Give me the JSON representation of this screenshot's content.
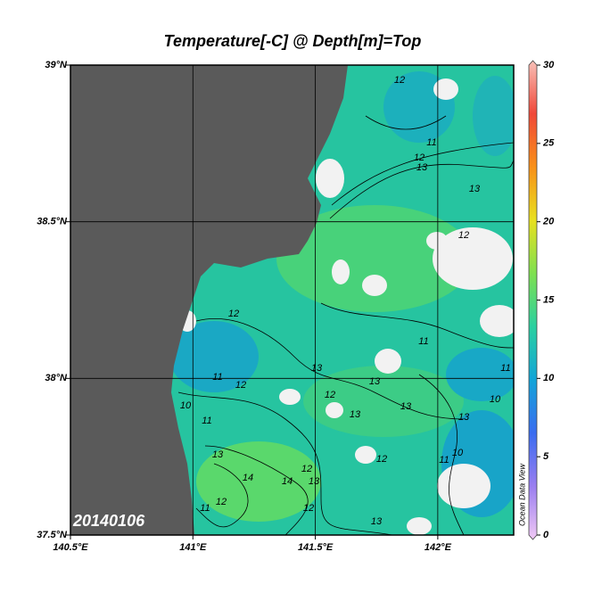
{
  "chart_data": {
    "type": "map",
    "title": "Temperature[-C] @ Depth[m]=Top",
    "date_label": "20140106",
    "watermark": "Ocean Data View",
    "xlim": [
      140.5,
      142.31
    ],
    "xticks": [
      {
        "value": 140.5,
        "label": "140.5°E"
      },
      {
        "value": 141,
        "label": "141°E"
      },
      {
        "value": 141.5,
        "label": "141.5°E"
      },
      {
        "value": 142,
        "label": "142°E"
      }
    ],
    "ylim": [
      37.5,
      39
    ],
    "yticks": [
      {
        "value": 37.5,
        "label": "37.5°N"
      },
      {
        "value": 38,
        "label": "38°N"
      },
      {
        "value": 38.5,
        "label": "38.5°N"
      },
      {
        "value": 39,
        "label": "39°N"
      }
    ],
    "grid": true,
    "colorbar": {
      "lim": [
        0,
        30
      ],
      "ticks": [
        0,
        5,
        10,
        15,
        20,
        25,
        30
      ],
      "colors": [
        "#f0c8f4",
        "#9a7ef0",
        "#3a6cf0",
        "#12a4d8",
        "#2ad0a0",
        "#7ee050",
        "#e8e020",
        "#f89018",
        "#f04838",
        "#f8c0b8"
      ]
    },
    "contour_labels": [
      12,
      11,
      12,
      13,
      13,
      12,
      11,
      12,
      10,
      11,
      13,
      12,
      13,
      13,
      13,
      11,
      10,
      11,
      13,
      13,
      14,
      14,
      12,
      13,
      12,
      11,
      12,
      13,
      12,
      11,
      10,
      12
    ]
  }
}
